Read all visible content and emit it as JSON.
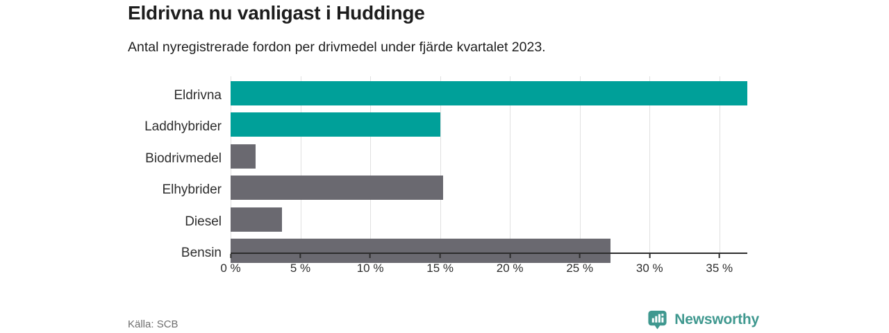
{
  "chart_data": {
    "type": "bar",
    "orientation": "horizontal",
    "title": "Eldrivna nu vanligast i Huddinge",
    "subtitle": "Antal nyregistrerade fordon per drivmedel under fjärde kvartalet 2023.",
    "categories": [
      "Eldrivna",
      "Laddhybrider",
      "Biodrivmedel",
      "Elhybrider",
      "Diesel",
      "Bensin"
    ],
    "values": [
      37.0,
      15.0,
      1.8,
      15.2,
      3.7,
      27.2
    ],
    "unit": "%",
    "xlim": [
      0,
      37
    ],
    "x_ticks": [
      0,
      5,
      10,
      15,
      20,
      25,
      30,
      35
    ],
    "x_tick_labels": [
      "0 %",
      "5 %",
      "10 %",
      "15 %",
      "20 %",
      "25 %",
      "30 %",
      "35 %"
    ],
    "bar_colors": [
      "#00a099",
      "#00a099",
      "#6a6970",
      "#6a6970",
      "#6a6970",
      "#6a6970"
    ],
    "grid": true,
    "legend": false
  },
  "footer": {
    "source": "Källa: SCB",
    "brand": "Newsworthy"
  },
  "colors": {
    "bar_teal": "#00a099",
    "bar_gray": "#6a6970",
    "logo_teal": "#3f988f",
    "gridline": "#e0e0e0",
    "axis": "#2d2d2d",
    "text_dark": "#1d1d1d",
    "text_muted": "#6e6e6e",
    "background": "#ffffff"
  },
  "icons": {
    "logo_icon": "newsworthy-bar-chart-pin-icon"
  }
}
